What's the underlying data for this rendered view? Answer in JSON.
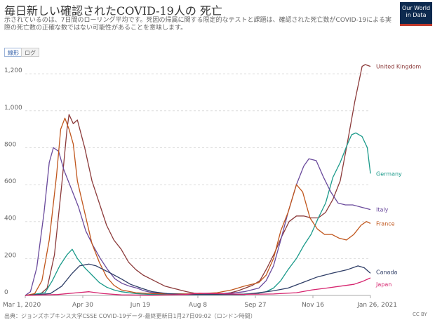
{
  "header": {
    "title": "毎日新しい確認されたCOVID-19人の 死亡",
    "subtitle": "示されているのは、7日間のローリング平均です。死因の帰属に関する限定的なテストと課題は、確認された死亡数がCOVID-19による実際の死亡数の正確な数ではない可能性があることを意味します。",
    "logo_line1": "Our World",
    "logo_line2": "in Data"
  },
  "toggles": {
    "linear": "線形",
    "log": "ログ"
  },
  "footer": {
    "source": "出典：ジョンズホプキンス大学CSSE COVID-19データ-最終更新日1月27日09:02（ロンドン時間）",
    "license": "CC BY"
  },
  "colors": {
    "United Kingdom": "#8b3a3a",
    "Germany": "#1a9a8a",
    "Italy": "#6a4a9c",
    "France": "#c0561c",
    "Canada": "#2e3d66",
    "Japan": "#d6246e",
    "grid": "#dddddd",
    "axis": "#aaaaaa",
    "tick": "#666666"
  },
  "chart_data": {
    "type": "line",
    "title": "毎日新しい確認されたCOVID-19人の 死亡",
    "xlabel": "",
    "ylabel": "",
    "x_ticks": [
      "Mar 1, 2020",
      "Apr 30",
      "Jun 19",
      "Aug 8",
      "Sep 27",
      "Nov 16",
      "Jan 26, 2021"
    ],
    "y_ticks": [
      0,
      200,
      400,
      600,
      800,
      1000,
      1200
    ],
    "ylim": [
      0,
      1250
    ],
    "xlim": [
      "2020-03-01",
      "2021-01-26"
    ],
    "grid": true,
    "legend": "inline-right",
    "series": [
      {
        "name": "United Kingdom",
        "points": [
          [
            "2020-03-01",
            0
          ],
          [
            "2020-03-15",
            5
          ],
          [
            "2020-03-22",
            40
          ],
          [
            "2020-03-29",
            220
          ],
          [
            "2020-04-05",
            600
          ],
          [
            "2020-04-10",
            900
          ],
          [
            "2020-04-12",
            980
          ],
          [
            "2020-04-16",
            930
          ],
          [
            "2020-04-20",
            950
          ],
          [
            "2020-04-27",
            800
          ],
          [
            "2020-05-04",
            620
          ],
          [
            "2020-05-11",
            500
          ],
          [
            "2020-05-18",
            380
          ],
          [
            "2020-05-25",
            300
          ],
          [
            "2020-06-01",
            250
          ],
          [
            "2020-06-08",
            180
          ],
          [
            "2020-06-15",
            140
          ],
          [
            "2020-06-22",
            110
          ],
          [
            "2020-06-29",
            90
          ],
          [
            "2020-07-06",
            70
          ],
          [
            "2020-07-13",
            50
          ],
          [
            "2020-07-20",
            40
          ],
          [
            "2020-07-27",
            30
          ],
          [
            "2020-08-03",
            20
          ],
          [
            "2020-08-10",
            12
          ],
          [
            "2020-08-17",
            10
          ],
          [
            "2020-08-24",
            10
          ],
          [
            "2020-08-31",
            10
          ],
          [
            "2020-09-07",
            10
          ],
          [
            "2020-09-14",
            15
          ],
          [
            "2020-09-21",
            25
          ],
          [
            "2020-09-28",
            40
          ],
          [
            "2020-10-05",
            55
          ],
          [
            "2020-10-12",
            80
          ],
          [
            "2020-10-19",
            150
          ],
          [
            "2020-10-26",
            230
          ],
          [
            "2020-11-02",
            320
          ],
          [
            "2020-11-09",
            400
          ],
          [
            "2020-11-16",
            430
          ],
          [
            "2020-11-23",
            430
          ],
          [
            "2020-11-30",
            420
          ],
          [
            "2020-12-07",
            420
          ],
          [
            "2020-12-14",
            450
          ],
          [
            "2020-12-21",
            520
          ],
          [
            "2020-12-28",
            620
          ],
          [
            "2021-01-04",
            830
          ],
          [
            "2021-01-11",
            1050
          ],
          [
            "2021-01-18",
            1240
          ],
          [
            "2021-01-21",
            1250
          ],
          [
            "2021-01-26",
            1240
          ]
        ]
      },
      {
        "name": "Germany",
        "points": [
          [
            "2020-03-01",
            0
          ],
          [
            "2020-03-20",
            15
          ],
          [
            "2020-03-27",
            80
          ],
          [
            "2020-04-03",
            160
          ],
          [
            "2020-04-10",
            220
          ],
          [
            "2020-04-15",
            250
          ],
          [
            "2020-04-20",
            200
          ],
          [
            "2020-04-27",
            150
          ],
          [
            "2020-05-04",
            110
          ],
          [
            "2020-05-11",
            70
          ],
          [
            "2020-05-18",
            45
          ],
          [
            "2020-05-25",
            30
          ],
          [
            "2020-06-01",
            20
          ],
          [
            "2020-06-15",
            10
          ],
          [
            "2020-07-01",
            5
          ],
          [
            "2020-08-01",
            5
          ],
          [
            "2020-09-01",
            5
          ],
          [
            "2020-09-27",
            8
          ],
          [
            "2020-10-11",
            12
          ],
          [
            "2020-10-18",
            20
          ],
          [
            "2020-10-25",
            40
          ],
          [
            "2020-11-01",
            80
          ],
          [
            "2020-11-08",
            140
          ],
          [
            "2020-11-16",
            200
          ],
          [
            "2020-11-23",
            270
          ],
          [
            "2020-11-30",
            330
          ],
          [
            "2020-12-07",
            420
          ],
          [
            "2020-12-14",
            500
          ],
          [
            "2020-12-21",
            640
          ],
          [
            "2020-12-28",
            720
          ],
          [
            "2021-01-04",
            820
          ],
          [
            "2021-01-08",
            870
          ],
          [
            "2021-01-12",
            880
          ],
          [
            "2021-01-18",
            860
          ],
          [
            "2021-01-23",
            800
          ],
          [
            "2021-01-26",
            660
          ]
        ]
      },
      {
        "name": "Italy",
        "points": [
          [
            "2020-03-01",
            0
          ],
          [
            "2020-03-06",
            20
          ],
          [
            "2020-03-12",
            150
          ],
          [
            "2020-03-19",
            450
          ],
          [
            "2020-03-24",
            720
          ],
          [
            "2020-03-28",
            800
          ],
          [
            "2020-04-02",
            780
          ],
          [
            "2020-04-07",
            680
          ],
          [
            "2020-04-14",
            580
          ],
          [
            "2020-04-21",
            480
          ],
          [
            "2020-04-28",
            350
          ],
          [
            "2020-05-05",
            270
          ],
          [
            "2020-05-12",
            200
          ],
          [
            "2020-05-19",
            140
          ],
          [
            "2020-05-26",
            90
          ],
          [
            "2020-06-02",
            65
          ],
          [
            "2020-06-09",
            50
          ],
          [
            "2020-06-16",
            40
          ],
          [
            "2020-06-23",
            25
          ],
          [
            "2020-07-01",
            15
          ],
          [
            "2020-07-15",
            10
          ],
          [
            "2020-08-01",
            8
          ],
          [
            "2020-08-15",
            8
          ],
          [
            "2020-09-01",
            10
          ],
          [
            "2020-09-15",
            12
          ],
          [
            "2020-09-27",
            20
          ],
          [
            "2020-10-11",
            40
          ],
          [
            "2020-10-18",
            80
          ],
          [
            "2020-10-25",
            160
          ],
          [
            "2020-11-01",
            300
          ],
          [
            "2020-11-08",
            450
          ],
          [
            "2020-11-16",
            600
          ],
          [
            "2020-11-23",
            700
          ],
          [
            "2020-11-28",
            740
          ],
          [
            "2020-12-05",
            730
          ],
          [
            "2020-12-12",
            640
          ],
          [
            "2020-12-19",
            560
          ],
          [
            "2020-12-26",
            500
          ],
          [
            "2021-01-02",
            490
          ],
          [
            "2021-01-09",
            490
          ],
          [
            "2021-01-16",
            480
          ],
          [
            "2021-01-26",
            465
          ]
        ]
      },
      {
        "name": "France",
        "points": [
          [
            "2020-03-01",
            0
          ],
          [
            "2020-03-10",
            10
          ],
          [
            "2020-03-17",
            80
          ],
          [
            "2020-03-24",
            300
          ],
          [
            "2020-03-31",
            650
          ],
          [
            "2020-04-04",
            900
          ],
          [
            "2020-04-08",
            960
          ],
          [
            "2020-04-12",
            900
          ],
          [
            "2020-04-16",
            820
          ],
          [
            "2020-04-20",
            620
          ],
          [
            "2020-04-27",
            450
          ],
          [
            "2020-05-04",
            280
          ],
          [
            "2020-05-11",
            180
          ],
          [
            "2020-05-18",
            100
          ],
          [
            "2020-05-25",
            55
          ],
          [
            "2020-06-01",
            30
          ],
          [
            "2020-06-15",
            15
          ],
          [
            "2020-07-01",
            10
          ],
          [
            "2020-08-01",
            8
          ],
          [
            "2020-08-15",
            10
          ],
          [
            "2020-09-01",
            15
          ],
          [
            "2020-09-15",
            30
          ],
          [
            "2020-09-27",
            50
          ],
          [
            "2020-10-04",
            60
          ],
          [
            "2020-10-11",
            70
          ],
          [
            "2020-10-18",
            110
          ],
          [
            "2020-10-25",
            200
          ],
          [
            "2020-11-01",
            350
          ],
          [
            "2020-11-08",
            450
          ],
          [
            "2020-11-16",
            600
          ],
          [
            "2020-11-22",
            560
          ],
          [
            "2020-11-29",
            420
          ],
          [
            "2020-12-06",
            360
          ],
          [
            "2020-12-13",
            330
          ],
          [
            "2020-12-20",
            330
          ],
          [
            "2020-12-27",
            310
          ],
          [
            "2021-01-03",
            300
          ],
          [
            "2021-01-10",
            330
          ],
          [
            "2021-01-17",
            380
          ],
          [
            "2021-01-22",
            400
          ],
          [
            "2021-01-26",
            390
          ]
        ]
      },
      {
        "name": "Canada",
        "points": [
          [
            "2020-03-01",
            0
          ],
          [
            "2020-03-25",
            10
          ],
          [
            "2020-04-05",
            50
          ],
          [
            "2020-04-15",
            120
          ],
          [
            "2020-04-22",
            160
          ],
          [
            "2020-05-01",
            170
          ],
          [
            "2020-05-08",
            160
          ],
          [
            "2020-05-15",
            140
          ],
          [
            "2020-05-22",
            120
          ],
          [
            "2020-06-01",
            90
          ],
          [
            "2020-06-10",
            60
          ],
          [
            "2020-06-20",
            40
          ],
          [
            "2020-07-01",
            20
          ],
          [
            "2020-07-15",
            10
          ],
          [
            "2020-08-01",
            5
          ],
          [
            "2020-09-01",
            5
          ],
          [
            "2020-09-27",
            5
          ],
          [
            "2020-10-11",
            15
          ],
          [
            "2020-10-25",
            25
          ],
          [
            "2020-11-08",
            40
          ],
          [
            "2020-11-22",
            70
          ],
          [
            "2020-12-06",
            100
          ],
          [
            "2020-12-20",
            120
          ],
          [
            "2021-01-04",
            140
          ],
          [
            "2021-01-14",
            160
          ],
          [
            "2021-01-20",
            150
          ],
          [
            "2021-01-26",
            120
          ]
        ]
      },
      {
        "name": "Japan",
        "points": [
          [
            "2020-03-01",
            0
          ],
          [
            "2020-04-01",
            5
          ],
          [
            "2020-04-20",
            15
          ],
          [
            "2020-05-01",
            20
          ],
          [
            "2020-05-15",
            10
          ],
          [
            "2020-06-01",
            3
          ],
          [
            "2020-07-01",
            1
          ],
          [
            "2020-08-01",
            5
          ],
          [
            "2020-08-15",
            12
          ],
          [
            "2020-09-01",
            10
          ],
          [
            "2020-09-27",
            6
          ],
          [
            "2020-10-25",
            8
          ],
          [
            "2020-11-16",
            15
          ],
          [
            "2020-12-01",
            30
          ],
          [
            "2020-12-15",
            40
          ],
          [
            "2020-12-28",
            50
          ],
          [
            "2021-01-10",
            60
          ],
          [
            "2021-01-18",
            75
          ],
          [
            "2021-01-26",
            95
          ]
        ]
      }
    ]
  }
}
